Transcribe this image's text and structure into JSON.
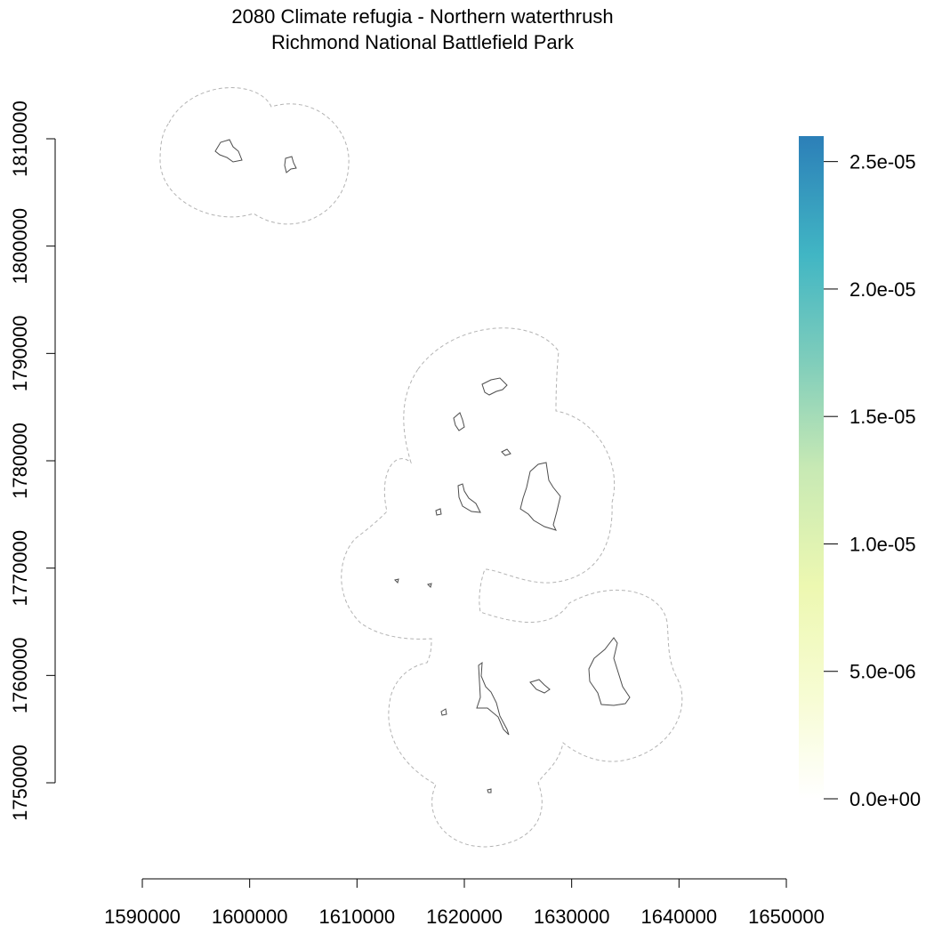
{
  "chart_data": {
    "type": "map",
    "title_line1": "2080 Climate refugia - Northern waterthrush",
    "title_line2": "Richmond National Battlefield Park",
    "x_ticks": [
      1590000,
      1600000,
      1610000,
      1620000,
      1630000,
      1640000,
      1650000
    ],
    "y_ticks": [
      1750000,
      1760000,
      1770000,
      1780000,
      1790000,
      1800000,
      1810000
    ],
    "xlim": [
      1590000,
      1650000
    ],
    "ylim": [
      1750000,
      1810000
    ],
    "legend": {
      "min": 0,
      "max": 2.6e-05,
      "ticks": [
        "0.0e+00",
        "5.0e-06",
        "1.0e-05",
        "1.5e-05",
        "2.0e-05",
        "2.5e-05"
      ],
      "tick_values": [
        0,
        5e-06,
        1e-05,
        1.5e-05,
        2e-05,
        2.5e-05
      ],
      "colors": [
        "#ffffff",
        "#f7fcd4",
        "#edf8b1",
        "#c7e9b4",
        "#7fcdbb",
        "#41b6c4",
        "#2c7fb8"
      ]
    },
    "park_units": [
      {
        "name": "",
        "center": [
          1598000,
          1808800
        ]
      },
      {
        "name": "",
        "center": [
          1603800,
          1807800
        ]
      },
      {
        "name": "",
        "center": [
          1622200,
          1786700
        ]
      },
      {
        "name": "",
        "center": [
          1619500,
          1783600
        ]
      },
      {
        "name": "",
        "center": [
          1623500,
          1780700
        ]
      },
      {
        "name": "",
        "center": [
          1620300,
          1776600
        ]
      },
      {
        "name": "",
        "center": [
          1626800,
          1775800
        ]
      },
      {
        "name": "",
        "center": [
          1617500,
          1775200
        ]
      },
      {
        "name": "",
        "center": [
          1613700,
          1768700
        ]
      },
      {
        "name": "",
        "center": [
          1616700,
          1768300
        ]
      },
      {
        "name": "",
        "center": [
          1621600,
          1758700
        ]
      },
      {
        "name": "",
        "center": [
          1627300,
          1759000
        ]
      },
      {
        "name": "",
        "center": [
          1634200,
          1759600
        ]
      },
      {
        "name": "",
        "center": [
          1618100,
          1756600
        ]
      },
      {
        "name": "",
        "center": [
          1622400,
          1749300
        ]
      }
    ]
  }
}
